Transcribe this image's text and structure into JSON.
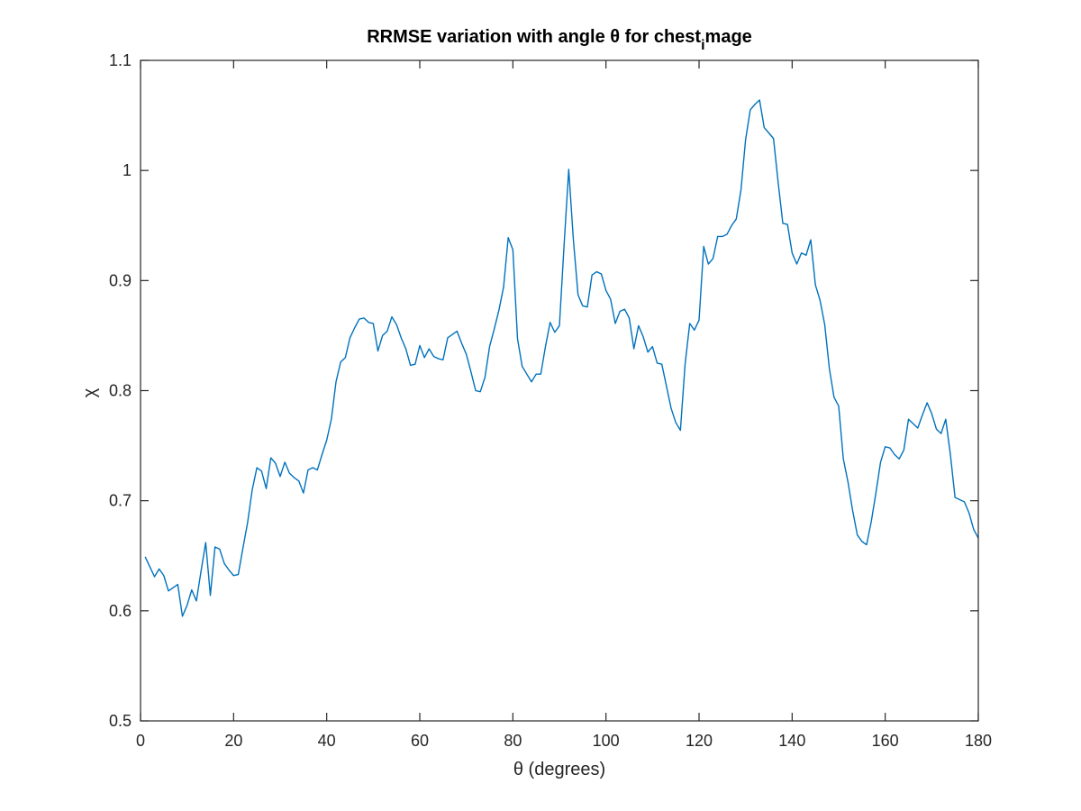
{
  "chart_data": {
    "type": "line",
    "title": "RRMSE variation with angle θ for chest",
    "title_subscript": "i",
    "title_suffix": "mage",
    "xlabel": "θ (degrees)",
    "ylabel": "χ",
    "xlim": [
      0,
      180
    ],
    "ylim": [
      0.5,
      1.1
    ],
    "xticks": [
      "0",
      "20",
      "40",
      "60",
      "80",
      "100",
      "120",
      "140",
      "160",
      "180"
    ],
    "yticks": [
      "0.5",
      "0.6",
      "0.7",
      "0.8",
      "0.9",
      "1",
      "1.1"
    ],
    "grid": false,
    "line_color": "#0072bd",
    "series": [
      {
        "x": [
          1,
          2,
          3,
          4,
          5,
          6,
          7,
          8,
          9,
          10,
          11,
          12,
          13,
          14,
          15,
          16,
          17,
          18,
          19,
          20,
          21,
          22,
          23,
          24,
          25,
          26,
          27,
          28,
          29,
          30,
          31,
          32,
          33,
          34,
          35,
          36,
          37,
          38,
          39,
          40,
          41,
          42,
          43,
          44,
          45,
          46,
          47,
          48,
          49,
          50,
          51,
          52,
          53,
          54,
          55,
          56,
          57,
          58,
          59,
          60,
          61,
          62,
          63,
          64,
          65,
          66,
          67,
          68,
          69,
          70,
          71,
          72,
          73,
          74,
          75,
          76,
          77,
          78,
          79,
          80,
          81,
          82,
          83,
          84,
          85,
          86,
          87,
          88,
          89,
          90,
          91,
          92,
          93,
          94,
          95,
          96,
          97,
          98,
          99,
          100,
          101,
          102,
          103,
          104,
          105,
          106,
          107,
          108,
          109,
          110,
          111,
          112,
          113,
          114,
          115,
          116,
          117,
          118,
          119,
          120,
          121,
          122,
          123,
          124,
          125,
          126,
          127,
          128,
          129,
          130,
          131,
          132,
          133,
          134,
          135,
          136,
          137,
          138,
          139,
          140,
          141,
          142,
          143,
          144,
          145,
          146,
          147,
          148,
          149,
          150,
          151,
          152,
          153,
          154,
          155,
          156,
          157,
          158,
          159,
          160,
          161,
          162,
          163,
          164,
          165,
          166,
          167,
          168,
          169,
          170,
          171,
          172,
          173,
          174,
          175,
          176,
          177,
          178,
          179,
          180
        ],
        "y": [
          0.649,
          0.64,
          0.631,
          0.638,
          0.632,
          0.618,
          0.621,
          0.624,
          0.595,
          0.605,
          0.619,
          0.609,
          0.636,
          0.662,
          0.614,
          0.658,
          0.656,
          0.643,
          0.637,
          0.632,
          0.633,
          0.657,
          0.68,
          0.71,
          0.73,
          0.727,
          0.711,
          0.739,
          0.734,
          0.722,
          0.735,
          0.725,
          0.721,
          0.718,
          0.707,
          0.728,
          0.73,
          0.728,
          0.742,
          0.755,
          0.774,
          0.808,
          0.826,
          0.83,
          0.848,
          0.857,
          0.865,
          0.866,
          0.862,
          0.861,
          0.836,
          0.85,
          0.854,
          0.867,
          0.86,
          0.848,
          0.838,
          0.823,
          0.824,
          0.841,
          0.83,
          0.838,
          0.831,
          0.829,
          0.828,
          0.848,
          0.851,
          0.854,
          0.843,
          0.833,
          0.817,
          0.8,
          0.799,
          0.812,
          0.84,
          0.856,
          0.873,
          0.894,
          0.939,
          0.928,
          0.847,
          0.822,
          0.815,
          0.808,
          0.815,
          0.815,
          0.84,
          0.862,
          0.853,
          0.859,
          0.932,
          1.001,
          0.937,
          0.887,
          0.877,
          0.876,
          0.905,
          0.908,
          0.906,
          0.891,
          0.883,
          0.861,
          0.872,
          0.874,
          0.866,
          0.838,
          0.859,
          0.849,
          0.835,
          0.84,
          0.825,
          0.824,
          0.804,
          0.784,
          0.771,
          0.764,
          0.824,
          0.861,
          0.855,
          0.864,
          0.931,
          0.915,
          0.92,
          0.94,
          0.94,
          0.942,
          0.95,
          0.956,
          0.982,
          1.028,
          1.055,
          1.06,
          1.064,
          1.039,
          1.034,
          1.029,
          0.989,
          0.952,
          0.951,
          0.925,
          0.915,
          0.925,
          0.923,
          0.937,
          0.896,
          0.882,
          0.86,
          0.82,
          0.794,
          0.786,
          0.738,
          0.717,
          0.691,
          0.669,
          0.663,
          0.66,
          0.681,
          0.707,
          0.735,
          0.749,
          0.748,
          0.742,
          0.738,
          0.746,
          0.774,
          0.77,
          0.766,
          0.778,
          0.789,
          0.779,
          0.765,
          0.761,
          0.774,
          0.742,
          0.703,
          0.701,
          0.699,
          0.689,
          0.674,
          0.666
        ]
      }
    ]
  }
}
